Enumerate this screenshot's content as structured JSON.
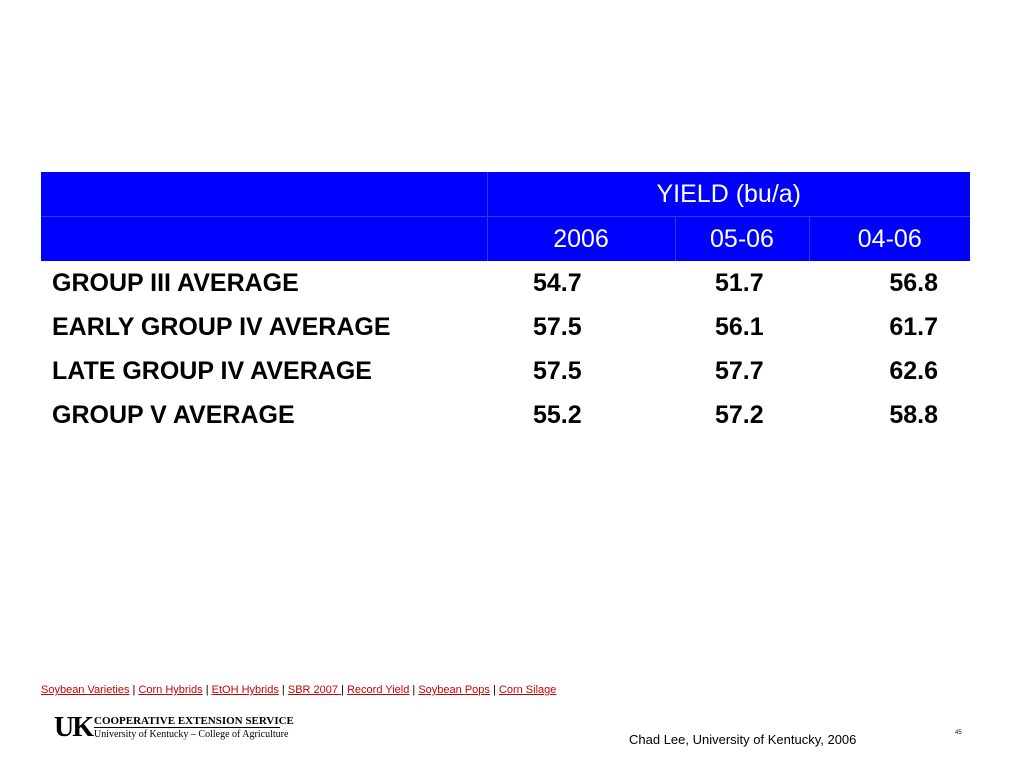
{
  "table": {
    "group_header": "YIELD (bu/a)",
    "columns": [
      "2006",
      "05-06",
      "04-06"
    ],
    "rows": [
      {
        "label": "GROUP III AVERAGE",
        "values": [
          "54.7",
          "51.7",
          "56.8"
        ]
      },
      {
        "label": "EARLY GROUP IV AVERAGE",
        "values": [
          "57.5",
          "56.1",
          "61.7"
        ]
      },
      {
        "label": "LATE GROUP IV AVERAGE",
        "values": [
          "57.5",
          "57.7",
          "62.6"
        ]
      },
      {
        "label": "GROUP V AVERAGE",
        "values": [
          "55.2",
          "57.2",
          "58.8"
        ]
      }
    ]
  },
  "links": {
    "items": [
      "Soybean Varieties",
      "Corn Hybrids",
      "EtOH Hybrids",
      "SBR 2007 ",
      "Record Yield",
      "Soybean Pops",
      "Corn Silage"
    ],
    "separator": " | "
  },
  "logo": {
    "mark": "UK",
    "line1": "COOPERATIVE EXTENSION SERVICE",
    "line2": "University of Kentucky – College of Agriculture"
  },
  "credit": "Chad Lee, University of Kentucky, 2006",
  "slide_number": "45",
  "colors": {
    "header_bg": "#0000FF",
    "link": "#CC0000"
  }
}
